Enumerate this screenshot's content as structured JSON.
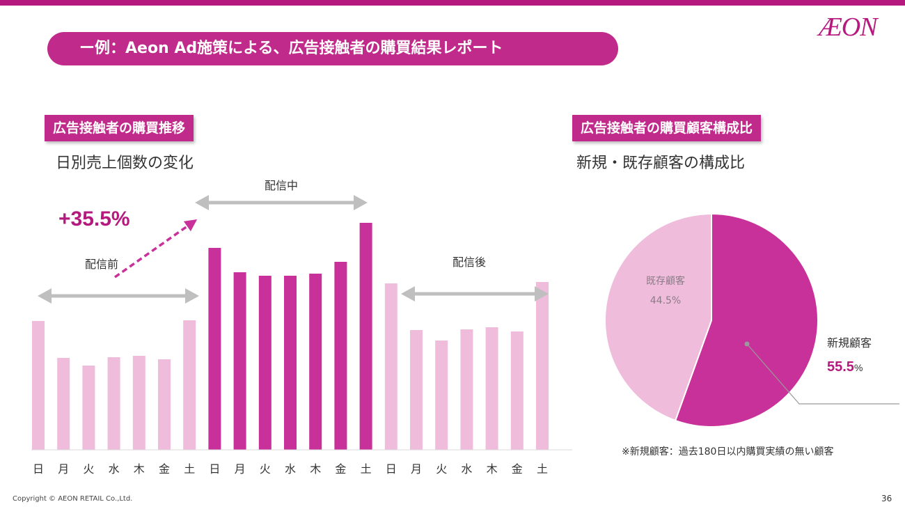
{
  "slide": {
    "title": "ー例：Aeon Ad施策による、広告接触者の購買結果レポート",
    "logo": "ÆON",
    "page_number": "36",
    "copyright": "Copyright © AEON RETAIL Co.,Ltd."
  },
  "colors": {
    "brand": "#b5197d",
    "bar_dark": "#c8309a",
    "bar_light": "#efbcdc",
    "pie_new": "#c8309a",
    "pie_existing": "#efbcdc",
    "arrow_gray": "#bfbfbf"
  },
  "left_panel": {
    "tag": "広告接触者の購買推移",
    "subtitle": "日別売上個数の変化",
    "growth": "+35.5%",
    "period_before": "配信前",
    "period_during": "配信中",
    "period_after": "配信後"
  },
  "right_panel": {
    "tag": "広告接触者の購買顧客構成比",
    "subtitle": "新規・既存顧客の構成比",
    "new_label": "新規顧客",
    "new_value": "55.5",
    "new_unit": "%",
    "existing_label": "既存顧客",
    "existing_value": "44.5%",
    "note": "※新規顧客：過去180日以内購買実績の無い顧客"
  },
  "chart_data": [
    {
      "type": "bar",
      "title": "日別売上個数の変化",
      "categories": [
        "日",
        "月",
        "火",
        "水",
        "木",
        "金",
        "土",
        "日",
        "月",
        "火",
        "水",
        "木",
        "金",
        "土",
        "日",
        "月",
        "火",
        "水",
        "木",
        "金",
        "土"
      ],
      "series": [
        {
          "name": "配信前",
          "values": [
            185,
            132,
            121,
            133,
            135,
            130,
            186,
            null,
            null,
            null,
            null,
            null,
            null,
            null,
            null,
            null,
            null,
            null,
            null,
            null,
            null
          ]
        },
        {
          "name": "配信中",
          "values": [
            null,
            null,
            null,
            null,
            null,
            null,
            null,
            290,
            255,
            250,
            250,
            253,
            270,
            326,
            null,
            null,
            null,
            null,
            null,
            null,
            null
          ]
        },
        {
          "name": "配信後",
          "values": [
            null,
            null,
            null,
            null,
            null,
            null,
            null,
            null,
            null,
            null,
            null,
            null,
            null,
            null,
            239,
            172,
            157,
            173,
            176,
            170,
            241
          ]
        }
      ],
      "ylim": [
        0,
        340
      ],
      "xlabel": "",
      "ylabel": "",
      "grid": false,
      "annotations": [
        "+35.5%",
        "配信前",
        "配信中",
        "配信後"
      ]
    },
    {
      "type": "pie",
      "title": "新規・既存顧客の構成比",
      "labels": [
        "新規顧客",
        "既存顧客"
      ],
      "values": [
        55.5,
        44.5
      ]
    }
  ]
}
